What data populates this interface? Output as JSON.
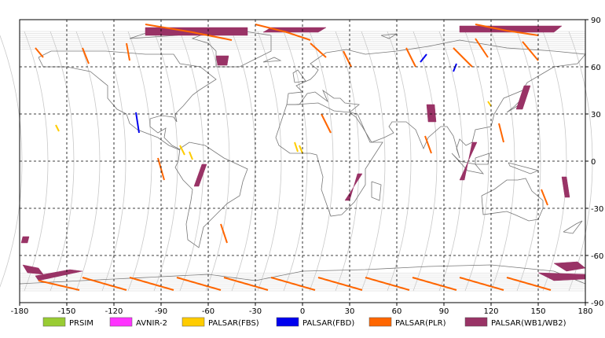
{
  "map": {
    "projection": "equirectangular",
    "lon_range": [
      -180,
      180
    ],
    "lat_range": [
      -90,
      90
    ],
    "grid": true,
    "grid_style": "dashed",
    "x_ticks": [
      "-180",
      "-150",
      "-120",
      "-90",
      "-60",
      "-30",
      "0",
      "30",
      "60",
      "90",
      "120",
      "150",
      "180"
    ],
    "y_ticks": [
      "90",
      "60",
      "30",
      "0",
      "-30",
      "-60",
      "-90"
    ]
  },
  "legend": [
    {
      "label": "PRSIM",
      "color": "#99cc33"
    },
    {
      "label": "AVNIR-2",
      "color": "#ff33ff"
    },
    {
      "label": "PALSAR(FBS)",
      "color": "#ffcc00"
    },
    {
      "label": "PALSAR(FBD)",
      "color": "#0000ee"
    },
    {
      "label": "PALSAR(PLR)",
      "color": "#ff6600"
    },
    {
      "label": "PALSAR(WB1/WB2)",
      "color": "#993366"
    }
  ],
  "chart_data": {
    "type": "map",
    "series": [
      {
        "name": "PALSAR(WB1/WB2)",
        "color": "#993366",
        "swaths": [
          [
            [
              -100,
              85
            ],
            [
              -35,
              85
            ],
            [
              -35,
              80
            ],
            [
              -100,
              80
            ]
          ],
          [
            [
              -20,
              85
            ],
            [
              15,
              85
            ],
            [
              10,
              82
            ],
            [
              -25,
              82
            ]
          ],
          [
            [
              100,
              86
            ],
            [
              165,
              86
            ],
            [
              160,
              82
            ],
            [
              100,
              82
            ]
          ],
          [
            [
              -55,
              67
            ],
            [
              -47,
              67
            ],
            [
              -48,
              61
            ],
            [
              -54,
              61
            ]
          ],
          [
            [
              38,
              -8
            ],
            [
              35,
              -8
            ],
            [
              30,
              -25
            ],
            [
              27,
              -25
            ]
          ],
          [
            [
              -64,
              -2
            ],
            [
              -61,
              -2
            ],
            [
              -66,
              -16
            ],
            [
              -69,
              -16
            ]
          ],
          [
            [
              111,
              12
            ],
            [
              108,
              12
            ],
            [
              103,
              -12
            ],
            [
              100,
              -12
            ]
          ],
          [
            [
              79,
              36
            ],
            [
              84,
              36
            ],
            [
              85,
              25
            ],
            [
              80,
              25
            ]
          ],
          [
            [
              141,
              48
            ],
            [
              145,
              48
            ],
            [
              140,
              33
            ],
            [
              136,
              33
            ]
          ],
          [
            [
              165,
              -10
            ],
            [
              168,
              -10
            ],
            [
              170,
              -23
            ],
            [
              167,
              -23
            ]
          ],
          [
            [
              -178,
              -48
            ],
            [
              -174,
              -48
            ],
            [
              -175,
              -52
            ],
            [
              -179,
              -52
            ]
          ],
          [
            [
              -178,
              -66
            ],
            [
              -168,
              -68
            ],
            [
              -165,
              -72
            ],
            [
              -175,
              -71
            ]
          ],
          [
            [
              -170,
              -73
            ],
            [
              -148,
              -69
            ],
            [
              -140,
              -70
            ],
            [
              -168,
              -76
            ]
          ],
          [
            [
              160,
              -65
            ],
            [
              175,
              -64
            ],
            [
              180,
              -68
            ],
            [
              168,
              -70
            ]
          ],
          [
            [
              150,
              -71
            ],
            [
              180,
              -72
            ],
            [
              180,
              -75
            ],
            [
              160,
              -76
            ]
          ]
        ]
      },
      {
        "name": "PALSAR(PLR)",
        "color": "#ff6600",
        "paths": [
          [
            [
              -100,
              87
            ],
            [
              -70,
              82
            ],
            [
              -45,
              77
            ]
          ],
          [
            [
              -30,
              87
            ],
            [
              -10,
              82
            ],
            [
              5,
              77
            ]
          ],
          [
            [
              110,
              87
            ],
            [
              130,
              83
            ],
            [
              150,
              80
            ]
          ],
          [
            [
              -170,
              72
            ],
            [
              -165,
              66
            ]
          ],
          [
            [
              -140,
              72
            ],
            [
              -136,
              62
            ]
          ],
          [
            [
              -112,
              75
            ],
            [
              -110,
              64
            ]
          ],
          [
            [
              5,
              75
            ],
            [
              15,
              66
            ]
          ],
          [
            [
              26,
              70
            ],
            [
              31,
              60
            ]
          ],
          [
            [
              66,
              72
            ],
            [
              72,
              60
            ]
          ],
          [
            [
              96,
              72
            ],
            [
              108,
              60
            ]
          ],
          [
            [
              110,
              78
            ],
            [
              118,
              66
            ]
          ],
          [
            [
              140,
              76
            ],
            [
              150,
              64
            ]
          ],
          [
            [
              -168,
              -76
            ],
            [
              -142,
              -82
            ]
          ],
          [
            [
              -140,
              -74
            ],
            [
              -112,
              -82
            ]
          ],
          [
            [
              -110,
              -74
            ],
            [
              -82,
              -82
            ]
          ],
          [
            [
              -80,
              -74
            ],
            [
              -52,
              -82
            ]
          ],
          [
            [
              -50,
              -74
            ],
            [
              -22,
              -82
            ]
          ],
          [
            [
              -20,
              -74
            ],
            [
              8,
              -82
            ]
          ],
          [
            [
              10,
              -74
            ],
            [
              38,
              -82
            ]
          ],
          [
            [
              40,
              -74
            ],
            [
              68,
              -82
            ]
          ],
          [
            [
              70,
              -74
            ],
            [
              98,
              -82
            ]
          ],
          [
            [
              100,
              -74
            ],
            [
              128,
              -82
            ]
          ],
          [
            [
              130,
              -74
            ],
            [
              158,
              -82
            ]
          ],
          [
            [
              12,
              30
            ],
            [
              18,
              18
            ]
          ],
          [
            [
              -92,
              2
            ],
            [
              -88,
              -12
            ]
          ],
          [
            [
              -52,
              -40
            ],
            [
              -48,
              -52
            ]
          ],
          [
            [
              78,
              16
            ],
            [
              82,
              5
            ]
          ],
          [
            [
              125,
              24
            ],
            [
              128,
              12
            ]
          ],
          [
            [
              152,
              -18
            ],
            [
              156,
              -28
            ]
          ]
        ]
      },
      {
        "name": "PALSAR(FBS)",
        "color": "#ffcc00",
        "paths": [
          [
            [
              -157,
              23
            ],
            [
              -155,
              19
            ]
          ],
          [
            [
              -78,
              10
            ],
            [
              -75,
              4
            ]
          ],
          [
            [
              -72,
              6
            ],
            [
              -70,
              1
            ]
          ],
          [
            [
              -5,
              12
            ],
            [
              -3,
              6
            ]
          ],
          [
            [
              -2,
              10
            ],
            [
              0,
              5
            ]
          ],
          [
            [
              118,
              38
            ],
            [
              120,
              35
            ]
          ]
        ]
      },
      {
        "name": "PALSAR(FBD)",
        "color": "#0000ee",
        "paths": [
          [
            [
              -106,
              31
            ],
            [
              -104,
              18
            ]
          ],
          [
            [
              79,
              68
            ],
            [
              75,
              63
            ]
          ],
          [
            [
              98,
              62
            ],
            [
              96,
              57
            ]
          ]
        ]
      }
    ]
  }
}
